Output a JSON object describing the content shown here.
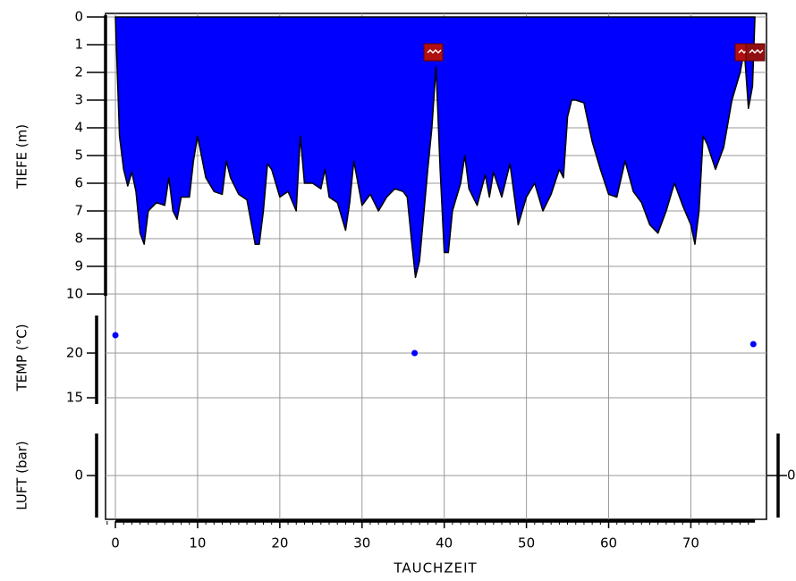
{
  "chart_data": [
    {
      "type": "area",
      "ylabel": "TIEFE (m)",
      "color": "#0000ff",
      "y_inverted": true,
      "grid": true,
      "x": [
        0,
        0.5,
        1,
        1.5,
        2,
        2.5,
        3,
        3.5,
        4,
        5,
        6,
        6.5,
        7,
        7.5,
        8,
        9,
        9.5,
        10,
        11,
        12,
        13,
        13.5,
        14,
        15,
        16,
        17,
        17.5,
        18,
        18.5,
        19,
        20,
        21,
        22,
        22.5,
        23,
        24,
        25,
        25.5,
        26,
        27,
        28,
        28.5,
        29,
        30,
        31,
        32,
        33,
        34,
        35,
        35.5,
        36,
        36.5,
        37,
        38,
        38.5,
        39,
        39.5,
        40,
        40.5,
        41,
        42,
        42.5,
        43,
        44,
        45,
        45.5,
        46,
        47,
        48,
        49,
        50,
        51,
        52,
        53,
        54,
        54.5,
        55,
        55.5,
        56,
        57,
        58,
        59,
        60,
        61,
        62,
        63,
        64,
        65,
        66,
        67,
        68,
        69,
        70,
        70.5,
        71,
        71.5,
        72,
        73,
        74,
        75,
        76,
        76.5,
        77,
        77.5,
        77.8
      ],
      "values": [
        0,
        4.3,
        5.5,
        6.1,
        5.6,
        6.3,
        7.8,
        8.2,
        7.0,
        6.7,
        6.8,
        5.8,
        7.0,
        7.3,
        6.5,
        6.5,
        5.2,
        4.3,
        5.8,
        6.3,
        6.4,
        5.2,
        5.8,
        6.4,
        6.6,
        8.2,
        8.2,
        7.0,
        5.3,
        5.5,
        6.5,
        6.3,
        7.0,
        4.3,
        6.0,
        6.0,
        6.2,
        5.5,
        6.5,
        6.7,
        7.7,
        6.7,
        5.2,
        6.8,
        6.4,
        7.0,
        6.5,
        6.2,
        6.3,
        6.5,
        8.0,
        9.4,
        8.8,
        5.5,
        4.0,
        1.8,
        5.5,
        8.5,
        8.5,
        7.0,
        6.0,
        5.0,
        6.2,
        6.8,
        5.7,
        6.5,
        5.6,
        6.5,
        5.3,
        7.5,
        6.5,
        6.0,
        7.0,
        6.4,
        5.5,
        5.8,
        3.6,
        3.0,
        3.0,
        3.1,
        4.5,
        5.5,
        6.4,
        6.5,
        5.2,
        6.3,
        6.7,
        7.5,
        7.8,
        7.0,
        6.0,
        6.8,
        7.5,
        8.2,
        7.0,
        4.3,
        4.6,
        5.5,
        4.7,
        3.0,
        2.0,
        1.2,
        3.3,
        2.5,
        0
      ],
      "ylim": [
        0,
        10
      ],
      "yticks": [
        0,
        1,
        2,
        3,
        4,
        5,
        6,
        7,
        8,
        9,
        10
      ]
    },
    {
      "type": "scatter",
      "ylabel": "TEMP (°C)",
      "color": "#0000ff",
      "grid": true,
      "x": [
        0,
        36.4,
        77.6
      ],
      "values": [
        22,
        20,
        21
      ],
      "ylim": [
        14.5,
        24
      ],
      "yticks": [
        15,
        20
      ]
    },
    {
      "type": "line",
      "ylabel": "LUFT (bar)",
      "xlabel": "TAUCHZEIT",
      "grid": true,
      "ylim": [
        -1,
        1
      ],
      "yticks": [
        0
      ],
      "y2lim": [
        -1,
        1
      ],
      "y2ticks": [
        0
      ],
      "xlim": [
        -1.2,
        79.2
      ],
      "xticks": [
        0,
        10,
        20,
        30,
        40,
        50,
        60,
        70
      ]
    }
  ]
}
